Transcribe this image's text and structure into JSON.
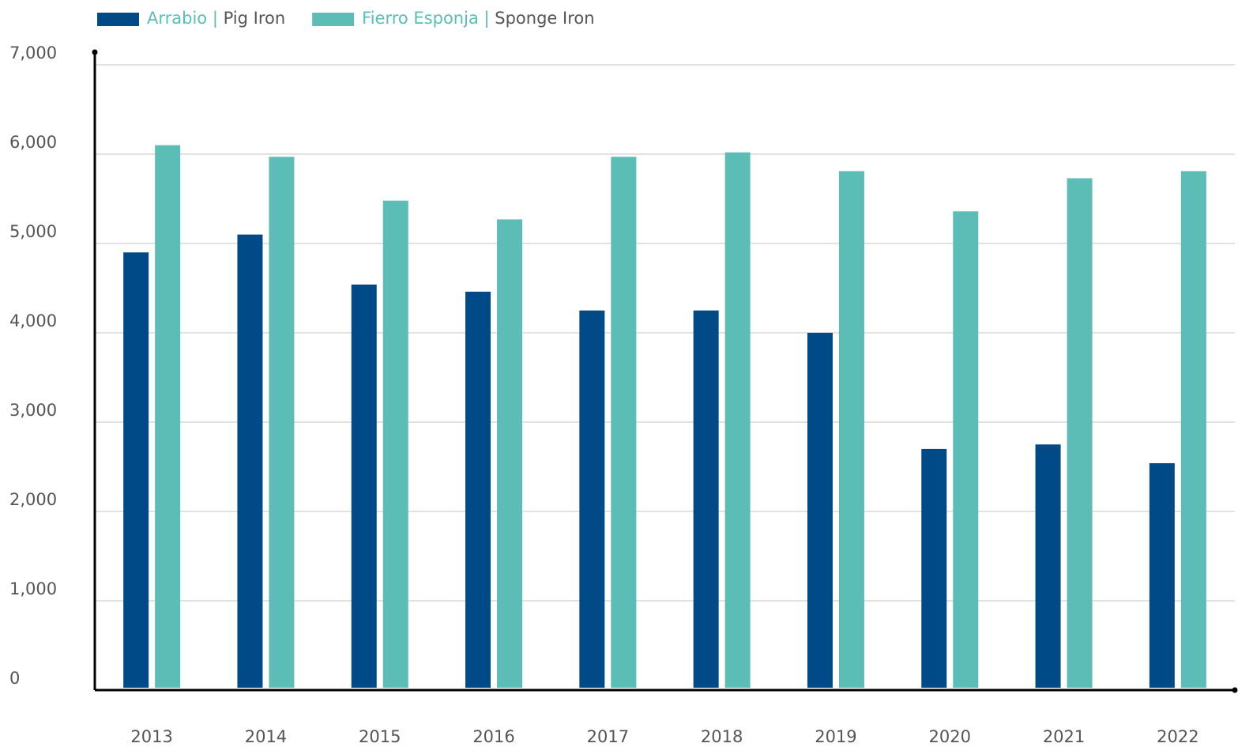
{
  "chart_data": {
    "type": "bar",
    "categories": [
      "2013",
      "2014",
      "2015",
      "2016",
      "2017",
      "2018",
      "2019",
      "2020",
      "2021",
      "2022"
    ],
    "series": [
      {
        "name": "Arrabio | Pig Iron",
        "color": "#004a87",
        "values": [
          4900,
          5100,
          4540,
          4460,
          4250,
          4250,
          4000,
          2700,
          2750,
          2540
        ]
      },
      {
        "name": "Fierro Esponja | Sponge Iron",
        "color": "#5bbdb6",
        "values": [
          6100,
          5970,
          5480,
          5270,
          5970,
          6020,
          5810,
          5360,
          5730,
          5810
        ]
      }
    ],
    "ylim": [
      0,
      7000
    ],
    "yticks": [
      0,
      {
        "value": 1000,
        "label": "1,000"
      },
      {
        "value": 2000,
        "label": "2,000"
      },
      {
        "value": 3000,
        "label": "3,000"
      },
      {
        "value": 4000,
        "label": "4,000"
      },
      {
        "value": 5000,
        "label": "5,000"
      },
      {
        "value": 6000,
        "label": "6,000"
      },
      {
        "value": 7000,
        "label": "7,000"
      }
    ],
    "grid": true,
    "legend": "top"
  }
}
